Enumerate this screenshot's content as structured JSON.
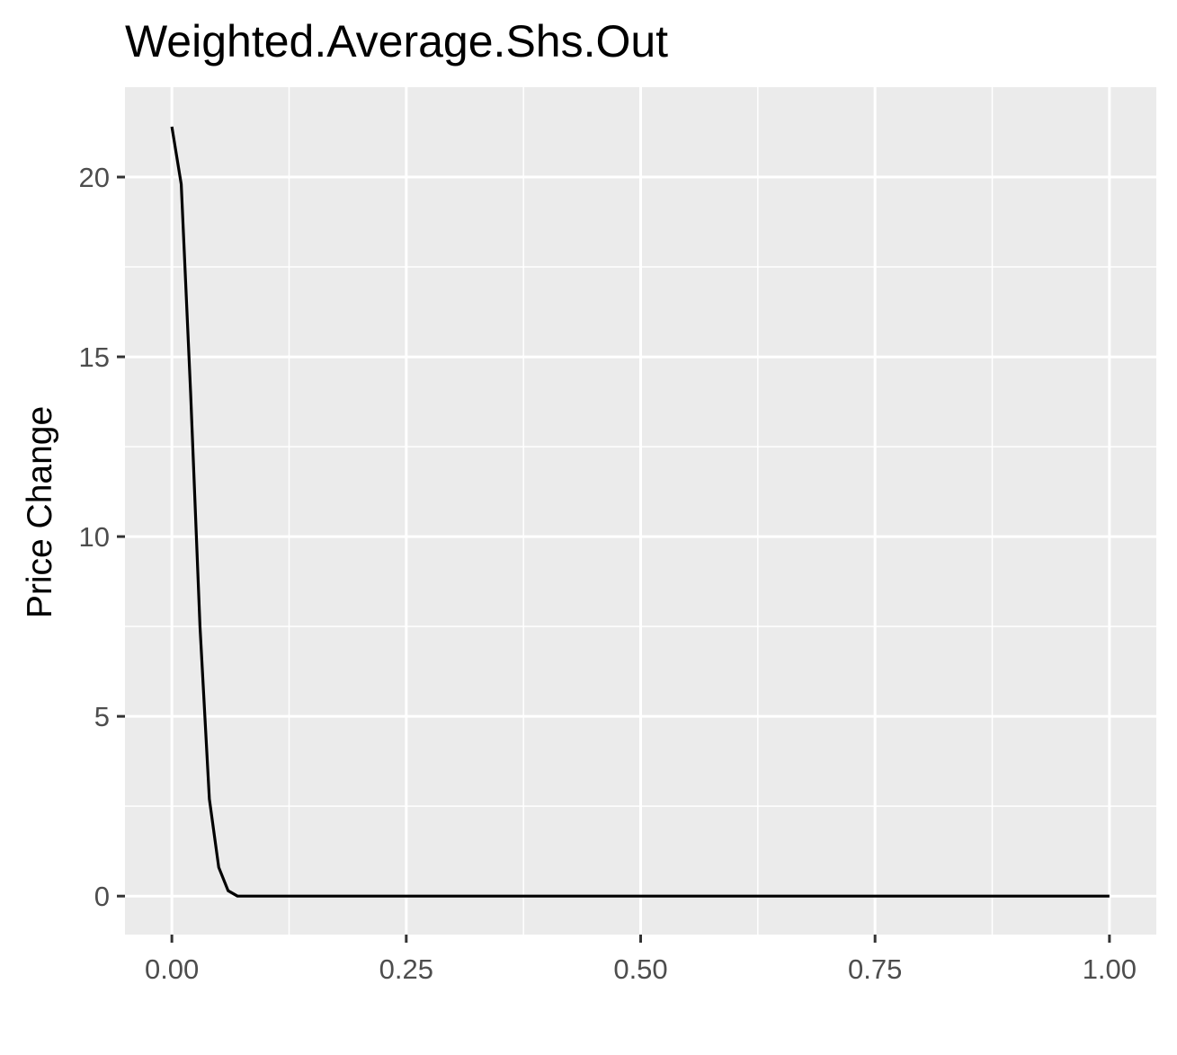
{
  "chart_data": {
    "type": "line",
    "title": "Weighted.Average.Shs.Out",
    "xlabel": "",
    "ylabel": "Price Change",
    "xlim": [
      -0.05,
      1.05
    ],
    "ylim": [
      -1.07,
      22.5
    ],
    "x_ticks": [
      0,
      0.25,
      0.5,
      0.75,
      1
    ],
    "x_tick_labels": [
      "0.00",
      "0.25",
      "0.50",
      "0.75",
      "1.00"
    ],
    "y_ticks": [
      0,
      5,
      10,
      15,
      20
    ],
    "y_tick_labels": [
      "0",
      "5",
      "10",
      "15",
      "20"
    ],
    "grid": true,
    "legend": "none",
    "colors": {
      "panel": "#ebebeb",
      "grid": "#ffffff",
      "line": "#000000",
      "tick_text": "#4d4d4d"
    },
    "series": [
      {
        "x": [
          0,
          0.01,
          0.02,
          0.03,
          0.04,
          0.05,
          0.06,
          0.07,
          0.08,
          0.1,
          0.2,
          0.3,
          0.4,
          0.5,
          0.6,
          0.7,
          0.8,
          0.9,
          1.0
        ],
        "y": [
          21.4,
          19.8,
          14.0,
          7.5,
          2.7,
          0.8,
          0.15,
          0.0,
          0.0,
          0.0,
          0.0,
          0.0,
          0.0,
          0.0,
          0.0,
          0.0,
          0.0,
          0.0,
          0.0
        ]
      }
    ]
  }
}
